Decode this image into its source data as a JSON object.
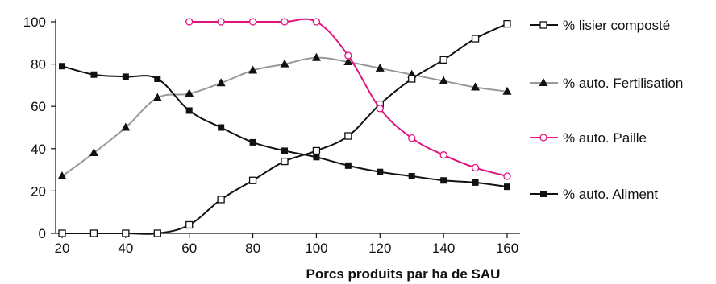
{
  "chart_data": {
    "type": "line",
    "title": "",
    "xlabel": "Porcs produits par ha de SAU",
    "ylabel": "",
    "xlim": [
      18,
      163
    ],
    "ylim": [
      0,
      100
    ],
    "xticks": [
      20,
      40,
      60,
      80,
      100,
      120,
      140,
      160
    ],
    "yticks": [
      0,
      20,
      40,
      60,
      80,
      100
    ],
    "grid": false,
    "legend_position": "right",
    "series": [
      {
        "name": "% lisier composté",
        "color": "#111111",
        "marker": "open-square",
        "x": [
          20,
          30,
          40,
          50,
          60,
          70,
          80,
          90,
          100,
          110,
          120,
          130,
          140,
          150,
          160
        ],
        "y": [
          0,
          0,
          0,
          0,
          4,
          16,
          25,
          34,
          39,
          46,
          61,
          73,
          82,
          92,
          99
        ]
      },
      {
        "name": "% auto. Fertilisation",
        "color": "#999999",
        "marker": "filled-triangle",
        "x": [
          20,
          30,
          40,
          50,
          60,
          70,
          80,
          90,
          100,
          110,
          120,
          130,
          140,
          150,
          160
        ],
        "y": [
          27,
          38,
          50,
          64,
          66,
          71,
          77,
          80,
          83,
          81,
          78,
          75,
          72,
          69,
          67
        ]
      },
      {
        "name": "% auto. Paille",
        "color": "#e0147f",
        "marker": "open-circle",
        "x": [
          60,
          70,
          80,
          90,
          100,
          110,
          120,
          130,
          140,
          150,
          160
        ],
        "y": [
          100,
          100,
          100,
          100,
          100,
          84,
          59,
          45,
          37,
          31,
          27
        ]
      },
      {
        "name": "% auto. Aliment",
        "color": "#111111",
        "marker": "filled-square",
        "x": [
          20,
          30,
          40,
          50,
          60,
          70,
          80,
          90,
          100,
          110,
          120,
          130,
          140,
          150,
          160
        ],
        "y": [
          79,
          75,
          74,
          73,
          58,
          50,
          43,
          39,
          36,
          32,
          29,
          27,
          25,
          24,
          22
        ]
      }
    ]
  }
}
